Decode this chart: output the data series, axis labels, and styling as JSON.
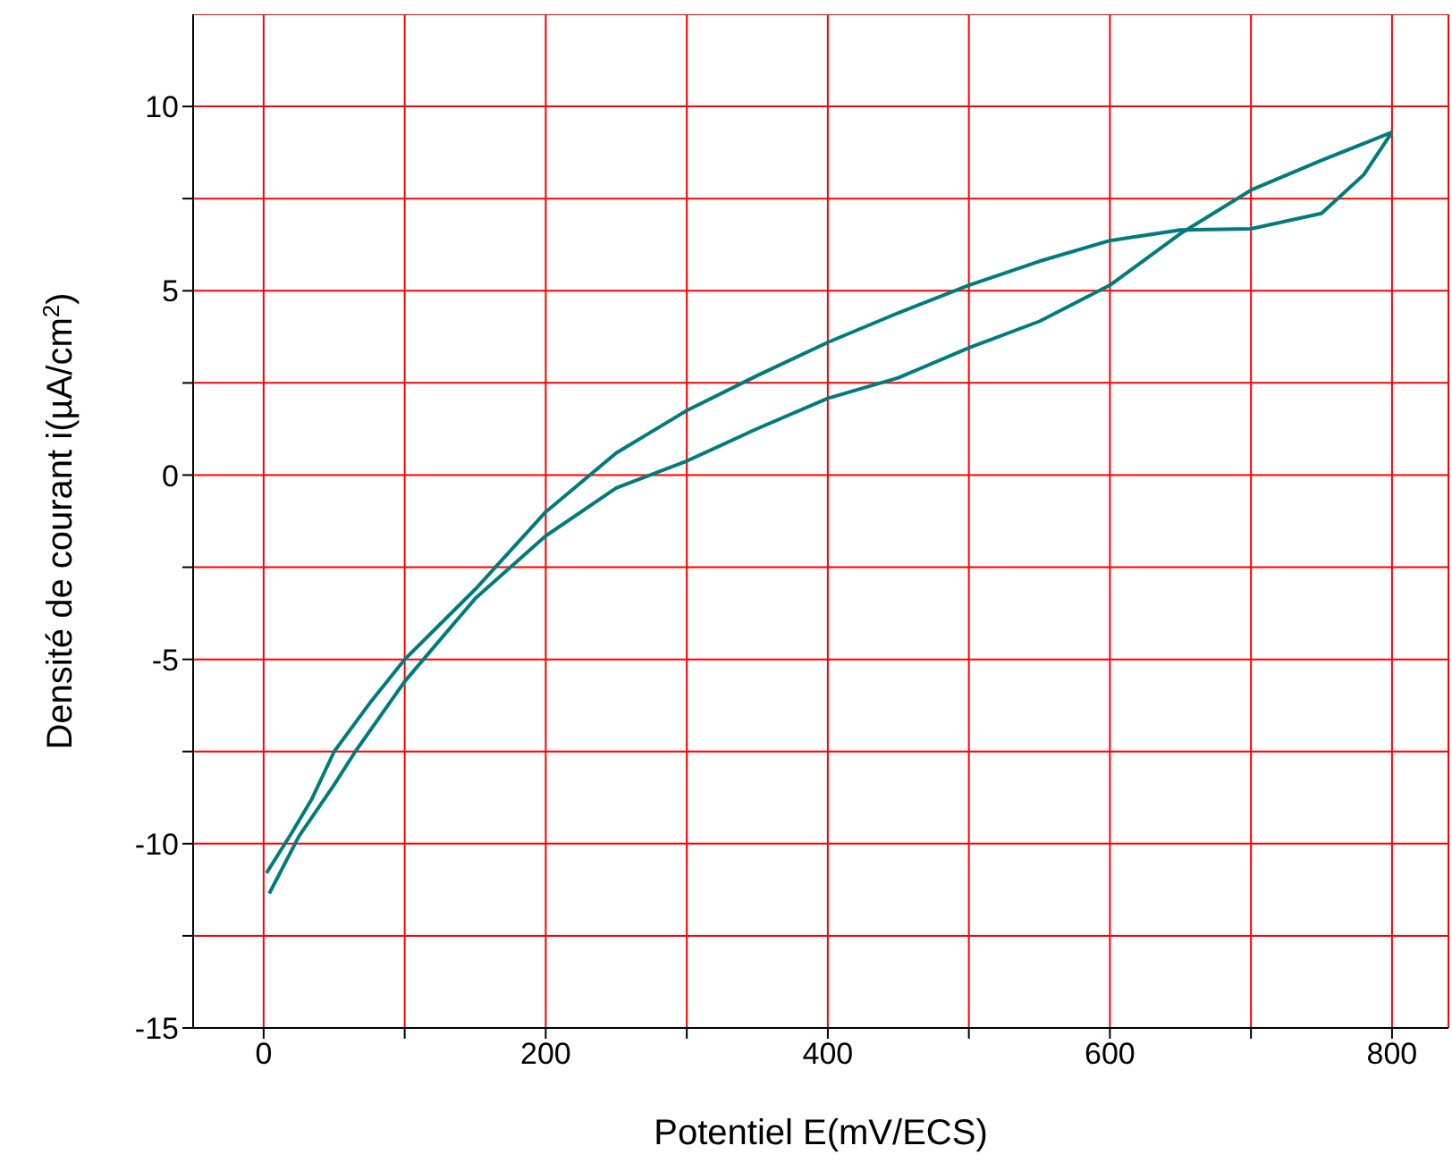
{
  "chart_data": {
    "type": "line",
    "xlabel": "Potentiel E(mV/ECS)",
    "ylabel": "Densité de courant i(µA/cm$^{2}$)",
    "xlim": [
      -50,
      840
    ],
    "xticks": [
      0,
      {
        "value": 100,
        "label": null
      },
      200,
      {
        "value": 300,
        "label": null
      },
      400,
      {
        "value": 500,
        "label": null
      },
      600,
      {
        "value": 700,
        "label": null
      },
      800
    ],
    "ylim": [
      -15,
      12.5
    ],
    "yticks": [
      -15,
      {
        "value": -12.5,
        "label": null
      },
      -10,
      {
        "value": -7.5,
        "label": null
      },
      -5,
      {
        "value": -2.5,
        "label": null
      },
      0,
      {
        "value": 2.5,
        "label": null
      },
      5,
      {
        "value": 7.5,
        "label": null
      },
      10
    ],
    "grid": true,
    "marker": "none",
    "line_style": "solid",
    "series": [
      {
        "color": "#007b7b",
        "x": [
          2,
          20,
          34,
          50,
          75,
          100,
          150,
          200,
          250,
          300,
          350,
          400,
          450,
          500,
          550,
          600,
          650,
          700,
          750,
          780,
          800
        ],
        "values": [
          -10.8,
          -9.7,
          -8.8,
          -7.5,
          -6.2,
          -5,
          -3.1,
          -1,
          0.6,
          1.75,
          2.7,
          3.6,
          4.4,
          5.15,
          5.8,
          6.36,
          6.65,
          6.68,
          7.1,
          8.15,
          9.3
        ]
      },
      {
        "color": "#007b7b",
        "x": [
          800,
          750,
          700,
          650,
          600,
          550,
          500,
          450,
          400,
          350,
          300,
          250,
          200,
          150,
          100,
          65,
          50,
          25,
          4
        ],
        "values": [
          9.3,
          8.54,
          7.73,
          6.55,
          5.15,
          4.17,
          3.45,
          2.64,
          2.08,
          1.26,
          0.38,
          -0.35,
          -1.65,
          -3.35,
          -5.6,
          -7.5,
          -8.4,
          -9.8,
          -11.35
        ]
      }
    ]
  }
}
